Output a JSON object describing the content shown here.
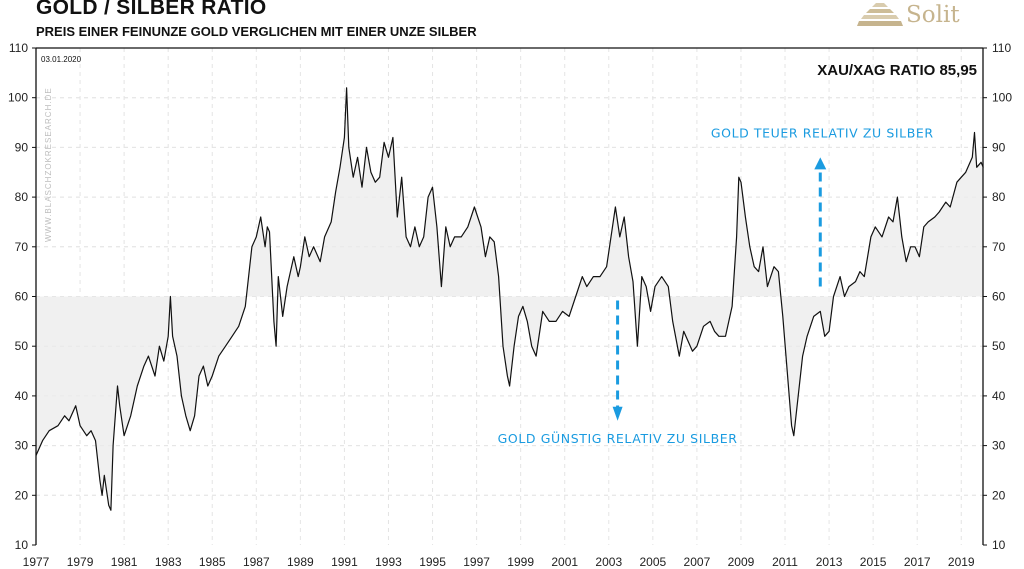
{
  "header": {
    "title": "GOLD / SILBER RATIO",
    "subtitle": "PREIS EINER FEINUNZE GOLD VERGLICHEN MIT EINER UNZE SILBER",
    "logo_text": "Solit"
  },
  "chart_data": {
    "type": "line",
    "title": "GOLD / SILBER RATIO",
    "date_label": "03.01.2020",
    "ratio_label": "XAU/XAG RATIO 85,95",
    "watermark": "WWW.BLASCHZOKRESEARCH.DE",
    "xlim": [
      1977,
      2020.1
    ],
    "ylim": [
      10,
      110
    ],
    "y_ticks": [
      10,
      20,
      30,
      40,
      50,
      60,
      70,
      80,
      90,
      100,
      110
    ],
    "x_ticks": [
      1977,
      1979,
      1981,
      1983,
      1985,
      1987,
      1989,
      1991,
      1993,
      1995,
      1997,
      1999,
      2001,
      2003,
      2005,
      2007,
      2009,
      2011,
      2013,
      2015,
      2017,
      2019
    ],
    "shade_baseline": 60,
    "grid": true,
    "colors": {
      "line": "#111111",
      "shade": "#f0f0f0",
      "annotation": "#1a9be0",
      "grid": "#e4e4e4"
    },
    "annotations": [
      {
        "text": "GOLD GÜNSTIG RELATIV ZU SILBER",
        "arrow": "down",
        "x": 2003.4,
        "from": 60,
        "to": 35
      },
      {
        "text": "GOLD TEUER RELATIV ZU SILBER",
        "arrow": "up",
        "x": 2012.6,
        "from": 62,
        "to": 88
      }
    ],
    "series": [
      {
        "name": "XAU/XAG",
        "x": [
          1977.0,
          1977.3,
          1977.6,
          1978.0,
          1978.3,
          1978.5,
          1978.8,
          1979.0,
          1979.3,
          1979.5,
          1979.7,
          1979.9,
          1980.0,
          1980.1,
          1980.3,
          1980.4,
          1980.5,
          1980.7,
          1980.8,
          1981.0,
          1981.3,
          1981.6,
          1981.9,
          1982.1,
          1982.4,
          1982.6,
          1982.8,
          1983.0,
          1983.1,
          1983.2,
          1983.4,
          1983.6,
          1983.8,
          1984.0,
          1984.2,
          1984.4,
          1984.6,
          1984.8,
          1985.0,
          1985.3,
          1985.6,
          1985.9,
          1986.2,
          1986.5,
          1986.8,
          1987.0,
          1987.2,
          1987.4,
          1987.5,
          1987.6,
          1987.8,
          1987.9,
          1988.0,
          1988.2,
          1988.4,
          1988.7,
          1988.9,
          1989.0,
          1989.2,
          1989.4,
          1989.6,
          1989.9,
          1990.1,
          1990.4,
          1990.6,
          1990.8,
          1991.0,
          1991.1,
          1991.2,
          1991.4,
          1991.6,
          1991.8,
          1992.0,
          1992.2,
          1992.4,
          1992.6,
          1992.8,
          1993.0,
          1993.2,
          1993.4,
          1993.6,
          1993.8,
          1994.0,
          1994.2,
          1994.4,
          1994.6,
          1994.8,
          1995.0,
          1995.2,
          1995.4,
          1995.6,
          1995.8,
          1996.0,
          1996.3,
          1996.6,
          1996.9,
          1997.2,
          1997.4,
          1997.6,
          1997.8,
          1998.0,
          1998.2,
          1998.4,
          1998.5,
          1998.7,
          1998.9,
          1999.1,
          1999.3,
          1999.5,
          1999.7,
          2000.0,
          2000.3,
          2000.6,
          2000.9,
          2001.2,
          2001.5,
          2001.8,
          2002.0,
          2002.3,
          2002.6,
          2002.9,
          2003.1,
          2003.3,
          2003.5,
          2003.7,
          2003.9,
          2004.1,
          2004.3,
          2004.5,
          2004.7,
          2004.9,
          2005.1,
          2005.4,
          2005.7,
          2005.9,
          2006.2,
          2006.4,
          2006.6,
          2006.8,
          2007.0,
          2007.3,
          2007.6,
          2007.8,
          2008.0,
          2008.3,
          2008.6,
          2008.8,
          2008.9,
          2009.0,
          2009.2,
          2009.4,
          2009.6,
          2009.8,
          2010.0,
          2010.2,
          2010.5,
          2010.7,
          2010.9,
          2011.1,
          2011.3,
          2011.4,
          2011.6,
          2011.8,
          2012.0,
          2012.3,
          2012.6,
          2012.8,
          2013.0,
          2013.2,
          2013.5,
          2013.7,
          2013.9,
          2014.2,
          2014.4,
          2014.6,
          2014.9,
          2015.1,
          2015.4,
          2015.7,
          2015.9,
          2016.1,
          2016.3,
          2016.5,
          2016.7,
          2016.9,
          2017.1,
          2017.3,
          2017.5,
          2017.8,
          2018.0,
          2018.3,
          2018.5,
          2018.8,
          2019.0,
          2019.2,
          2019.5,
          2019.6,
          2019.7,
          2019.9,
          2020.0
        ],
        "y": [
          28,
          31,
          33,
          34,
          36,
          35,
          38,
          34,
          32,
          33,
          31,
          23,
          20,
          24,
          18,
          17,
          30,
          42,
          38,
          32,
          36,
          42,
          46,
          48,
          44,
          50,
          47,
          52,
          60,
          52,
          48,
          40,
          36,
          33,
          36,
          44,
          46,
          42,
          44,
          48,
          50,
          52,
          54,
          58,
          70,
          72,
          76,
          70,
          74,
          73,
          55,
          50,
          64,
          56,
          62,
          68,
          64,
          66,
          72,
          68,
          70,
          67,
          72,
          75,
          81,
          86,
          92,
          102,
          90,
          84,
          88,
          82,
          90,
          85,
          83,
          84,
          91,
          88,
          92,
          76,
          84,
          72,
          70,
          74,
          70,
          72,
          80,
          82,
          74,
          62,
          74,
          70,
          72,
          72,
          74,
          78,
          74,
          68,
          72,
          71,
          64,
          50,
          44,
          42,
          50,
          56,
          58,
          55,
          50,
          48,
          57,
          55,
          55,
          57,
          56,
          60,
          64,
          62,
          64,
          64,
          66,
          72,
          78,
          72,
          76,
          68,
          63,
          50,
          64,
          62,
          57,
          62,
          64,
          62,
          55,
          48,
          53,
          51,
          49,
          50,
          54,
          55,
          53,
          52,
          52,
          58,
          72,
          84,
          83,
          76,
          70,
          66,
          65,
          70,
          62,
          66,
          65,
          56,
          45,
          34,
          32,
          40,
          48,
          52,
          56,
          57,
          52,
          53,
          60,
          64,
          60,
          62,
          63,
          65,
          64,
          72,
          74,
          72,
          76,
          75,
          80,
          72,
          67,
          70,
          70,
          68,
          74,
          75,
          76,
          77,
          79,
          78,
          83,
          84,
          85,
          88,
          93,
          86,
          87,
          85.95
        ]
      }
    ]
  }
}
